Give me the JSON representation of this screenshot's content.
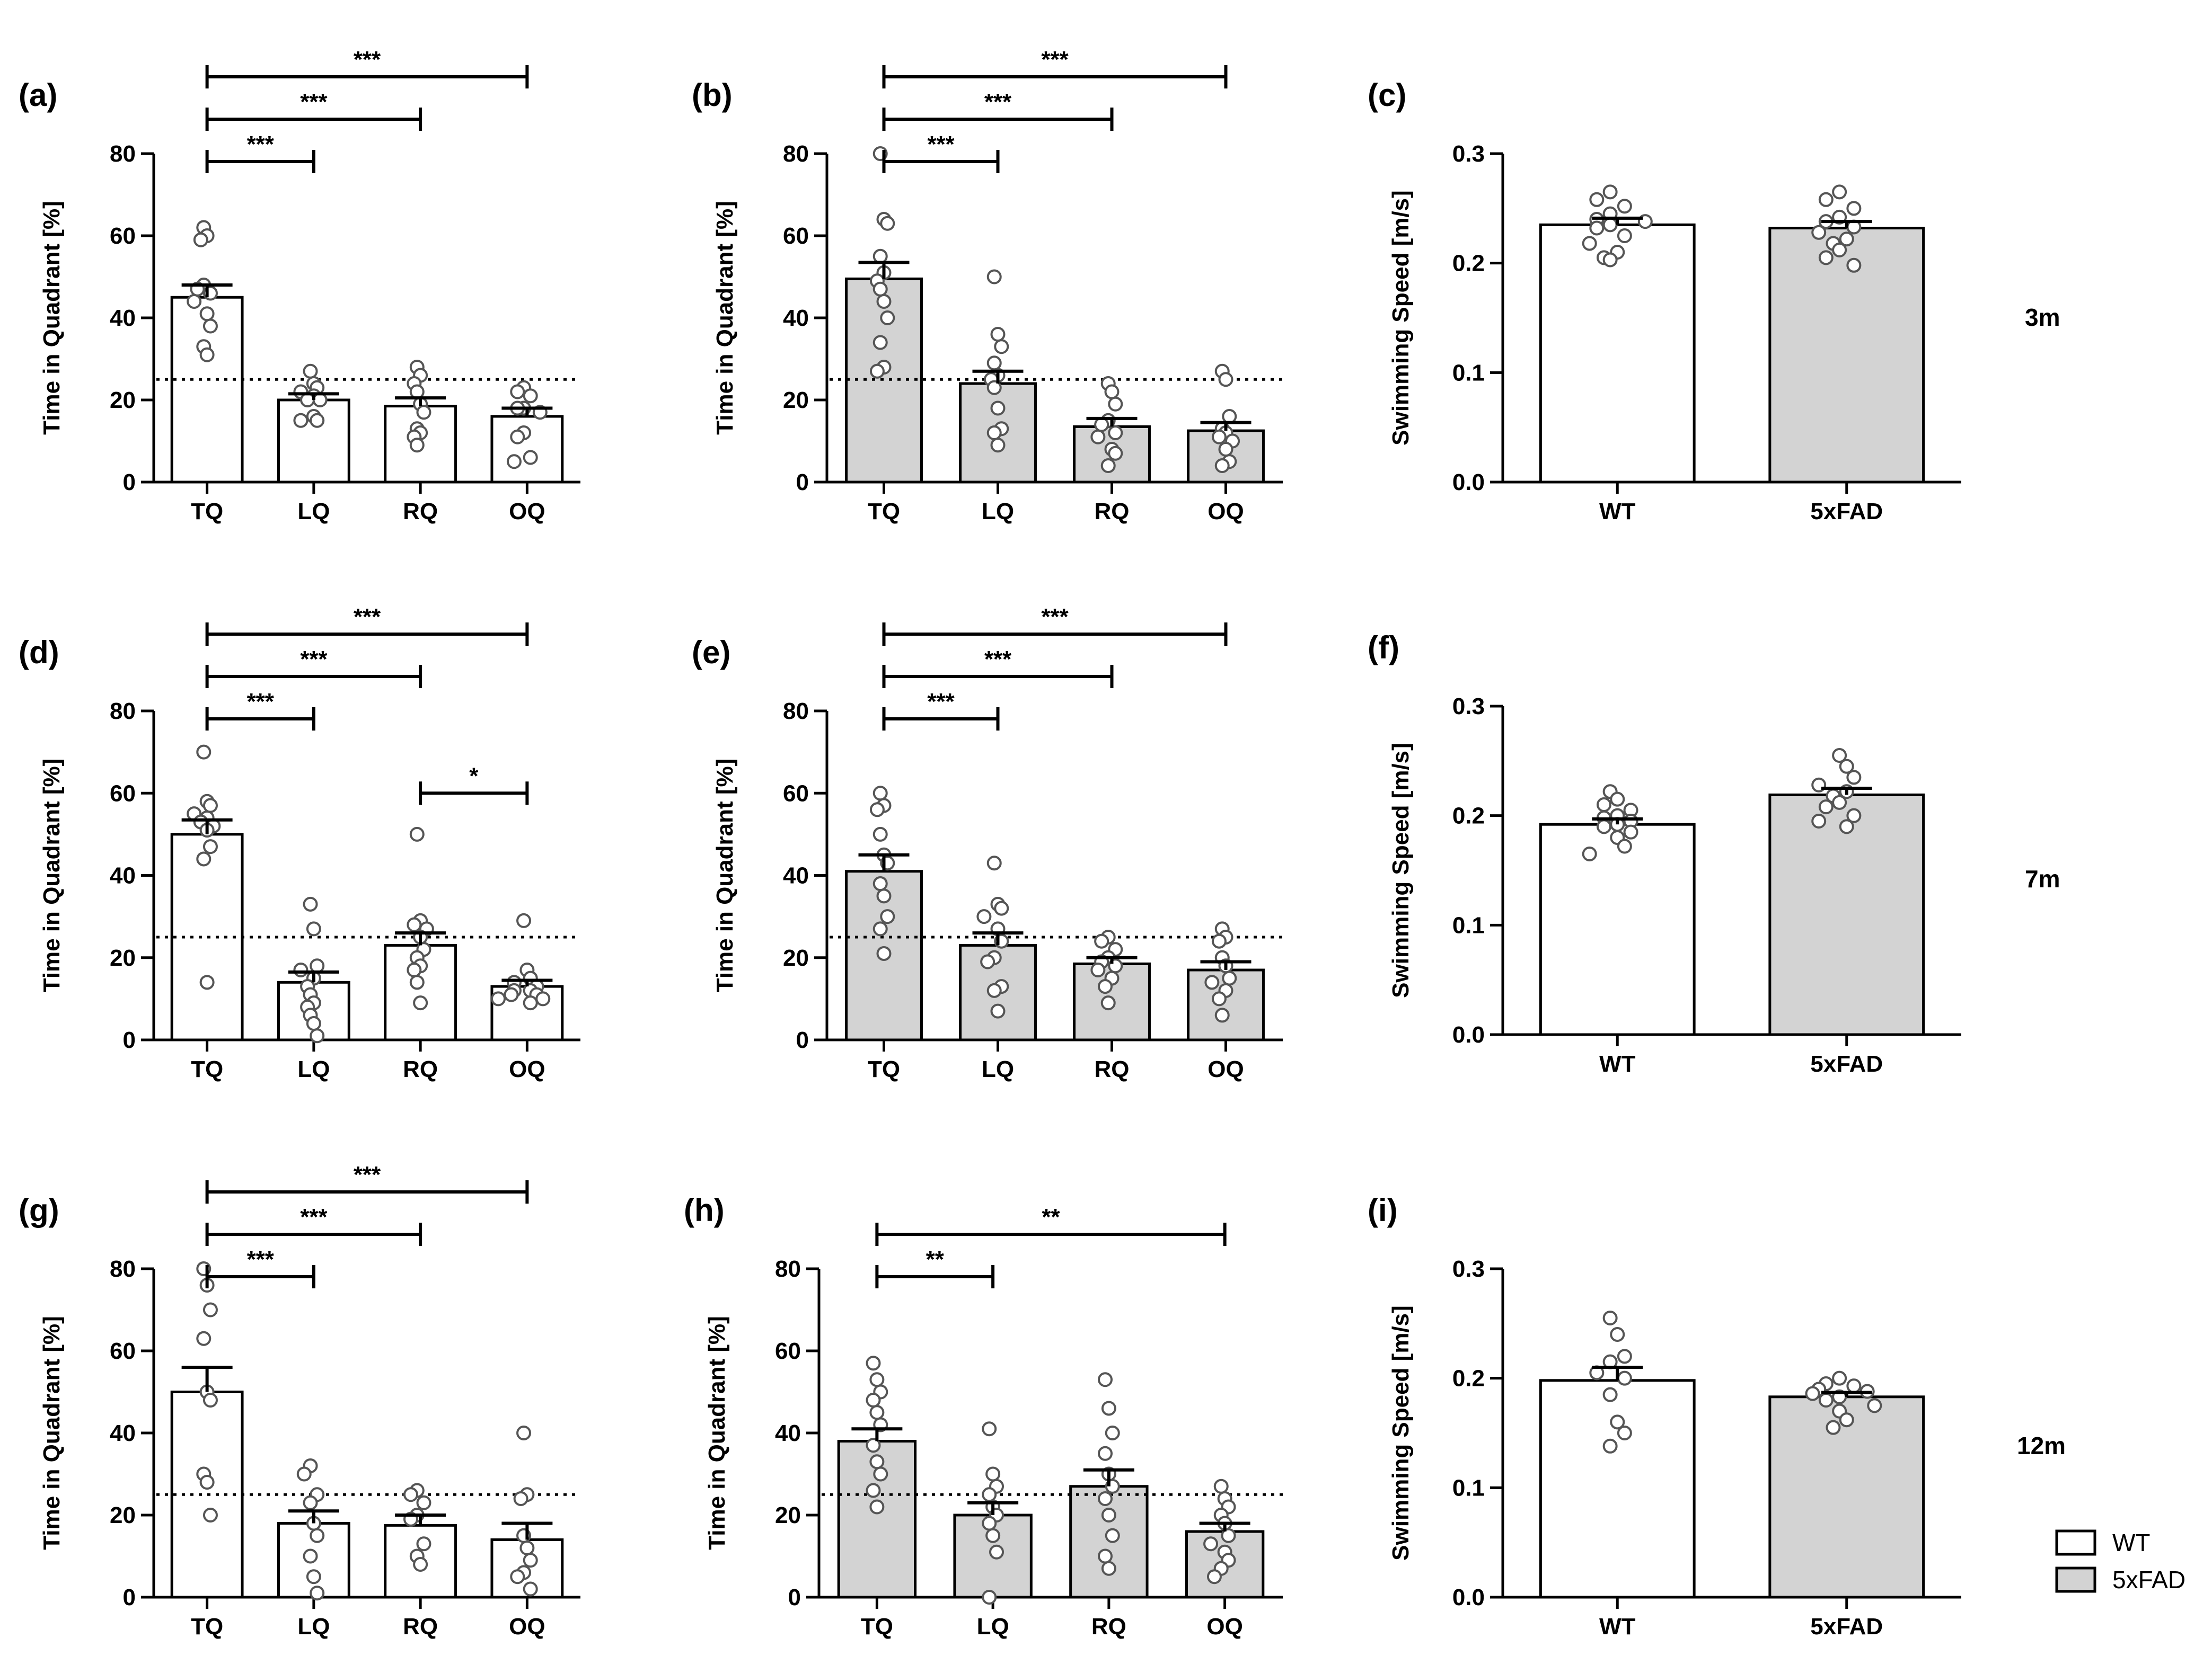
{
  "colors": {
    "WT": "#ffffff",
    "5xFAD": "#d3d3d3",
    "stroke": "#000000"
  },
  "legend": [
    {
      "label": "WT",
      "group": "WT"
    },
    {
      "label": "5xFAD",
      "group": "5xFAD"
    }
  ],
  "age_labels": [
    "3m",
    "7m",
    "12m"
  ],
  "chart_data": [
    {
      "id": "a",
      "label": "(a)",
      "type": "bar",
      "group": "WT",
      "ylabel": "Time in Quadrant [%]",
      "ylim": [
        0,
        80
      ],
      "yticks": [
        0,
        20,
        40,
        60,
        80
      ],
      "chance_line": 25,
      "categories": [
        "TQ",
        "LQ",
        "RQ",
        "OQ"
      ],
      "values": [
        45,
        20,
        18.5,
        16
      ],
      "sem": [
        3,
        1.5,
        2,
        2
      ],
      "points": [
        [
          62,
          60,
          59,
          48,
          47,
          46,
          44,
          41,
          38,
          33,
          31
        ],
        [
          27,
          24,
          23,
          22,
          21,
          20,
          20,
          16,
          15,
          15
        ],
        [
          28,
          26,
          24,
          22,
          19,
          17,
          13,
          12,
          11,
          9
        ],
        [
          23,
          22,
          21,
          18,
          18,
          17,
          12,
          11,
          6,
          5
        ]
      ],
      "comparisons": [
        {
          "from": "TQ",
          "to": "LQ",
          "label": "***"
        },
        {
          "from": "TQ",
          "to": "RQ",
          "label": "***"
        },
        {
          "from": "TQ",
          "to": "OQ",
          "label": "***"
        }
      ]
    },
    {
      "id": "b",
      "label": "(b)",
      "type": "bar",
      "group": "5xFAD",
      "ylabel": "Time in Quadrant [%]",
      "ylim": [
        0,
        80
      ],
      "yticks": [
        0,
        20,
        40,
        60,
        80
      ],
      "chance_line": 25,
      "categories": [
        "TQ",
        "LQ",
        "RQ",
        "OQ"
      ],
      "values": [
        49.5,
        24,
        13.5,
        12.5
      ],
      "sem": [
        4,
        3,
        2,
        2
      ],
      "points": [
        [
          80,
          64,
          63,
          55,
          51,
          49,
          47,
          44,
          40,
          34,
          28,
          27
        ],
        [
          50,
          36,
          33,
          29,
          26,
          25,
          23,
          18,
          13,
          12,
          9
        ],
        [
          24,
          22,
          19,
          15,
          14,
          12,
          11,
          8,
          7,
          4
        ],
        [
          27,
          25,
          16,
          13,
          12,
          11,
          10,
          8,
          5,
          4
        ]
      ],
      "comparisons": [
        {
          "from": "TQ",
          "to": "LQ",
          "label": "***"
        },
        {
          "from": "TQ",
          "to": "RQ",
          "label": "***"
        },
        {
          "from": "TQ",
          "to": "OQ",
          "label": "***"
        }
      ]
    },
    {
      "id": "c",
      "label": "(c)",
      "type": "bar",
      "ylabel": "Swimming Speed [m/s]",
      "ylim": [
        0,
        0.3
      ],
      "yticks": [
        0.0,
        0.1,
        0.2,
        0.3
      ],
      "categories": [
        "WT",
        "5xFAD"
      ],
      "bar_groups": [
        "WT",
        "5xFAD"
      ],
      "values": [
        0.235,
        0.232
      ],
      "sem": [
        0.006,
        0.006
      ],
      "points": [
        [
          0.265,
          0.258,
          0.252,
          0.245,
          0.24,
          0.238,
          0.235,
          0.232,
          0.225,
          0.218,
          0.21,
          0.205,
          0.203
        ],
        [
          0.265,
          0.258,
          0.25,
          0.242,
          0.238,
          0.233,
          0.228,
          0.222,
          0.218,
          0.212,
          0.205,
          0.198
        ]
      ],
      "comparisons": []
    },
    {
      "id": "d",
      "label": "(d)",
      "type": "bar",
      "group": "WT",
      "ylabel": "Time in Quadrant [%]",
      "ylim": [
        0,
        80
      ],
      "yticks": [
        0,
        20,
        40,
        60,
        80
      ],
      "chance_line": 25,
      "categories": [
        "TQ",
        "LQ",
        "RQ",
        "OQ"
      ],
      "values": [
        50,
        14,
        23,
        13
      ],
      "sem": [
        3.5,
        2.5,
        3,
        1.5
      ],
      "points": [
        [
          70,
          58,
          57,
          55,
          54,
          53,
          52,
          51,
          47,
          44,
          14
        ],
        [
          33,
          27,
          18,
          17,
          15,
          13,
          11,
          9,
          8,
          6,
          4,
          1
        ],
        [
          50,
          29,
          28,
          27,
          25,
          22,
          20,
          18,
          17,
          14,
          9
        ],
        [
          29,
          17,
          15,
          14,
          13,
          12,
          12,
          11,
          11,
          10,
          10,
          9
        ]
      ],
      "comparisons": [
        {
          "from": "TQ",
          "to": "LQ",
          "label": "***"
        },
        {
          "from": "TQ",
          "to": "RQ",
          "label": "***"
        },
        {
          "from": "TQ",
          "to": "OQ",
          "label": "***"
        },
        {
          "from": "RQ",
          "to": "OQ",
          "label": "*"
        }
      ]
    },
    {
      "id": "e",
      "label": "(e)",
      "type": "bar",
      "group": "5xFAD",
      "ylabel": "Time in Quadrant [%]",
      "ylim": [
        0,
        80
      ],
      "yticks": [
        0,
        20,
        40,
        60,
        80
      ],
      "chance_line": 25,
      "categories": [
        "TQ",
        "LQ",
        "RQ",
        "OQ"
      ],
      "values": [
        41,
        23,
        18.5,
        17
      ],
      "sem": [
        4,
        3,
        1.5,
        2
      ],
      "points": [
        [
          60,
          57,
          56,
          50,
          45,
          43,
          38,
          35,
          30,
          27,
          21
        ],
        [
          43,
          33,
          32,
          30,
          27,
          24,
          20,
          19,
          13,
          12,
          7
        ],
        [
          25,
          24,
          22,
          20,
          19,
          18,
          17,
          15,
          13,
          9
        ],
        [
          27,
          25,
          24,
          20,
          18,
          15,
          14,
          12,
          10,
          6
        ]
      ],
      "comparisons": [
        {
          "from": "TQ",
          "to": "LQ",
          "label": "***"
        },
        {
          "from": "TQ",
          "to": "RQ",
          "label": "***"
        },
        {
          "from": "TQ",
          "to": "OQ",
          "label": "***"
        }
      ]
    },
    {
      "id": "f",
      "label": "(f)",
      "type": "bar",
      "ylabel": "Swimming Speed [m/s]",
      "ylim": [
        0,
        0.3
      ],
      "yticks": [
        0.0,
        0.1,
        0.2,
        0.3
      ],
      "categories": [
        "WT",
        "5xFAD"
      ],
      "bar_groups": [
        "WT",
        "5xFAD"
      ],
      "values": [
        0.192,
        0.219
      ],
      "sem": [
        0.005,
        0.006
      ],
      "points": [
        [
          0.222,
          0.215,
          0.21,
          0.205,
          0.2,
          0.198,
          0.195,
          0.192,
          0.19,
          0.185,
          0.18,
          0.172,
          0.165
        ],
        [
          0.255,
          0.245,
          0.235,
          0.228,
          0.222,
          0.218,
          0.212,
          0.208,
          0.2,
          0.195,
          0.19
        ]
      ],
      "comparisons": []
    },
    {
      "id": "g",
      "label": "(g)",
      "type": "bar",
      "group": "WT",
      "ylabel": "Time in Quadrant [%]",
      "ylim": [
        0,
        80
      ],
      "yticks": [
        0,
        20,
        40,
        60,
        80
      ],
      "chance_line": 25,
      "categories": [
        "TQ",
        "LQ",
        "RQ",
        "OQ"
      ],
      "values": [
        50,
        18,
        17.5,
        14
      ],
      "sem": [
        6,
        3,
        2.5,
        4
      ],
      "points": [
        [
          80,
          76,
          70,
          63,
          50,
          48,
          30,
          28,
          20
        ],
        [
          32,
          30,
          25,
          23,
          18,
          15,
          10,
          5,
          1
        ],
        [
          26,
          25,
          23,
          20,
          19,
          13,
          10,
          8
        ],
        [
          40,
          25,
          24,
          15,
          12,
          9,
          6,
          5,
          2
        ]
      ],
      "comparisons": [
        {
          "from": "TQ",
          "to": "LQ",
          "label": "***"
        },
        {
          "from": "TQ",
          "to": "RQ",
          "label": "***"
        },
        {
          "from": "TQ",
          "to": "OQ",
          "label": "***"
        }
      ]
    },
    {
      "id": "h",
      "label": "(h)",
      "type": "bar",
      "group": "5xFAD",
      "ylabel": "Time in Quadrant [%]",
      "ylim": [
        0,
        80
      ],
      "yticks": [
        0,
        20,
        40,
        60,
        80
      ],
      "chance_line": 25,
      "categories": [
        "TQ",
        "LQ",
        "RQ",
        "OQ"
      ],
      "values": [
        38,
        20,
        27,
        16
      ],
      "sem": [
        3,
        3,
        4,
        2
      ],
      "points": [
        [
          57,
          53,
          50,
          48,
          45,
          42,
          37,
          33,
          30,
          26,
          22
        ],
        [
          41,
          30,
          27,
          25,
          22,
          20,
          18,
          15,
          11,
          0
        ],
        [
          53,
          46,
          40,
          35,
          30,
          27,
          24,
          20,
          15,
          10,
          7
        ],
        [
          27,
          24,
          22,
          20,
          18,
          15,
          13,
          11,
          9,
          7,
          5
        ]
      ],
      "comparisons": [
        {
          "from": "TQ",
          "to": "LQ",
          "label": "**"
        },
        {
          "from": "TQ",
          "to": "OQ",
          "label": "**"
        }
      ]
    },
    {
      "id": "i",
      "label": "(i)",
      "type": "bar",
      "ylabel": "Swimming Speed [m/s]",
      "ylim": [
        0,
        0.3
      ],
      "yticks": [
        0.0,
        0.1,
        0.2,
        0.3
      ],
      "categories": [
        "WT",
        "5xFAD"
      ],
      "bar_groups": [
        "WT",
        "5xFAD"
      ],
      "values": [
        0.198,
        0.183
      ],
      "sem": [
        0.012,
        0.004
      ],
      "points": [
        [
          0.255,
          0.24,
          0.22,
          0.215,
          0.205,
          0.2,
          0.185,
          0.16,
          0.15,
          0.138
        ],
        [
          0.2,
          0.195,
          0.193,
          0.19,
          0.188,
          0.186,
          0.183,
          0.18,
          0.175,
          0.17,
          0.162,
          0.155
        ]
      ],
      "comparisons": []
    }
  ]
}
